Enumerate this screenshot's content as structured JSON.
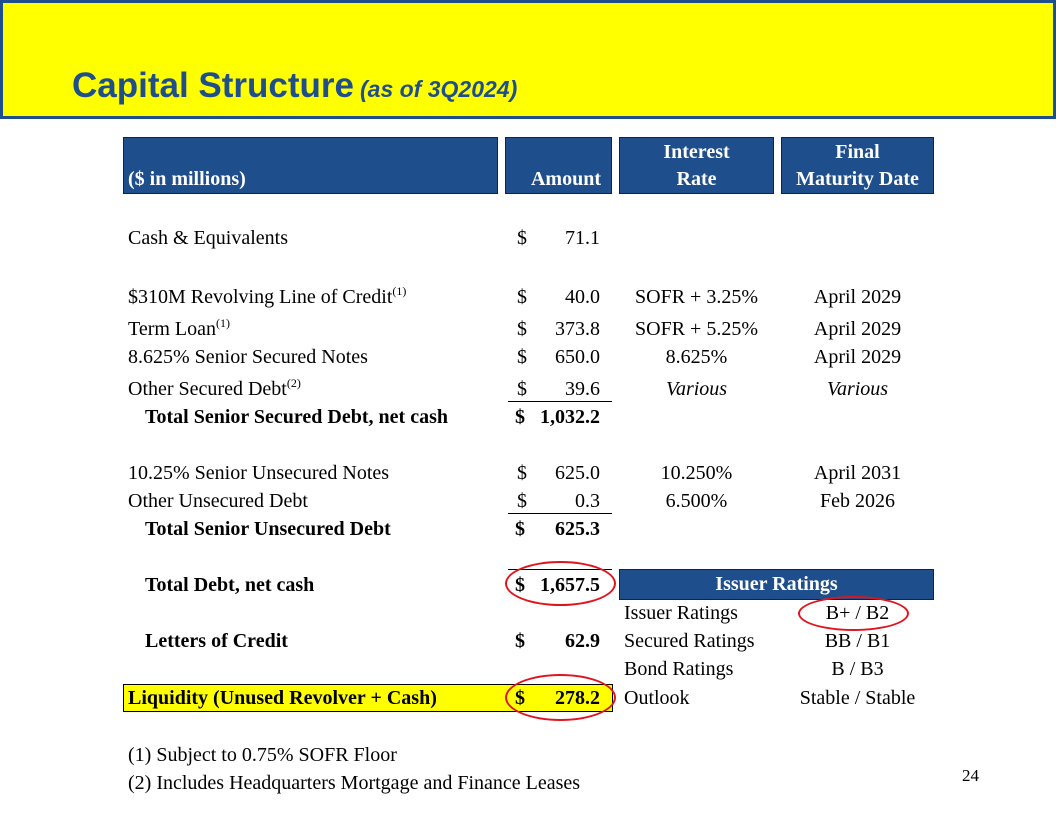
{
  "title": {
    "main": "Capital Structure",
    "sub": "(as of 3Q2024)"
  },
  "table_header": {
    "label": "($ in millions)",
    "amount": "Amount",
    "rate_line1": "Interest",
    "rate_line2": "Rate",
    "maturity_line1": "Final",
    "maturity_line2": "Maturity Date"
  },
  "rows": {
    "cash": {
      "label": "Cash & Equivalents",
      "cur": "$",
      "amount": "71.1"
    },
    "revolver": {
      "label": "$310M Revolving Line of Credit",
      "note": "(1)",
      "cur": "$",
      "amount": "40.0",
      "rate": "SOFR + 3.25%",
      "maturity": "April 2029"
    },
    "term_loan": {
      "label": "Term Loan",
      "note": "(1)",
      "cur": "$",
      "amount": "373.8",
      "rate": "SOFR + 5.25%",
      "maturity": "April 2029"
    },
    "secured_notes": {
      "label": "8.625% Senior Secured Notes",
      "cur": "$",
      "amount": "650.0",
      "rate": "8.625%",
      "maturity": "April 2029"
    },
    "other_secured": {
      "label": "Other Secured Debt",
      "note": "(2)",
      "cur": "$",
      "amount": "39.6",
      "rate": "Various",
      "maturity": "Various"
    },
    "total_secured": {
      "label": "Total Senior Secured Debt, net cash",
      "cur": "$",
      "amount": "1,032.2"
    },
    "unsecured_notes": {
      "label": "10.25% Senior Unsecured Notes",
      "cur": "$",
      "amount": "625.0",
      "rate": "10.250%",
      "maturity": "April 2031"
    },
    "other_unsecured": {
      "label": "Other Unsecured Debt",
      "cur": "$",
      "amount": "0.3",
      "rate": "6.500%",
      "maturity": "Feb 2026"
    },
    "total_unsecured": {
      "label": "Total Senior Unsecured Debt",
      "cur": "$",
      "amount": "625.3"
    },
    "total_debt": {
      "label": "Total Debt, net cash",
      "cur": "$",
      "amount": "1,657.5"
    },
    "letters_credit": {
      "label": "Letters of Credit",
      "cur": "$",
      "amount": "62.9"
    },
    "liquidity": {
      "label": "Liquidity (Unused Revolver + Cash)",
      "cur": "$",
      "amount": "278.2"
    }
  },
  "ratings": {
    "header": "Issuer Ratings",
    "items": [
      {
        "label": "Issuer Ratings",
        "value": "B+ / B2"
      },
      {
        "label": "Secured Ratings",
        "value": "BB / B1"
      },
      {
        "label": "Bond Ratings",
        "value": "B / B3"
      },
      {
        "label": "Outlook",
        "value": "Stable / Stable"
      }
    ]
  },
  "footnotes": [
    "(1) Subject to 0.75% SOFR Floor",
    "(2) Includes Headquarters Mortgage and Finance Leases"
  ],
  "page_number": "24",
  "colors": {
    "banner": "#ffff00",
    "title": "#1f4e8c",
    "header_fill": "#1f4e8c",
    "highlight_circle": "#e0141e"
  }
}
